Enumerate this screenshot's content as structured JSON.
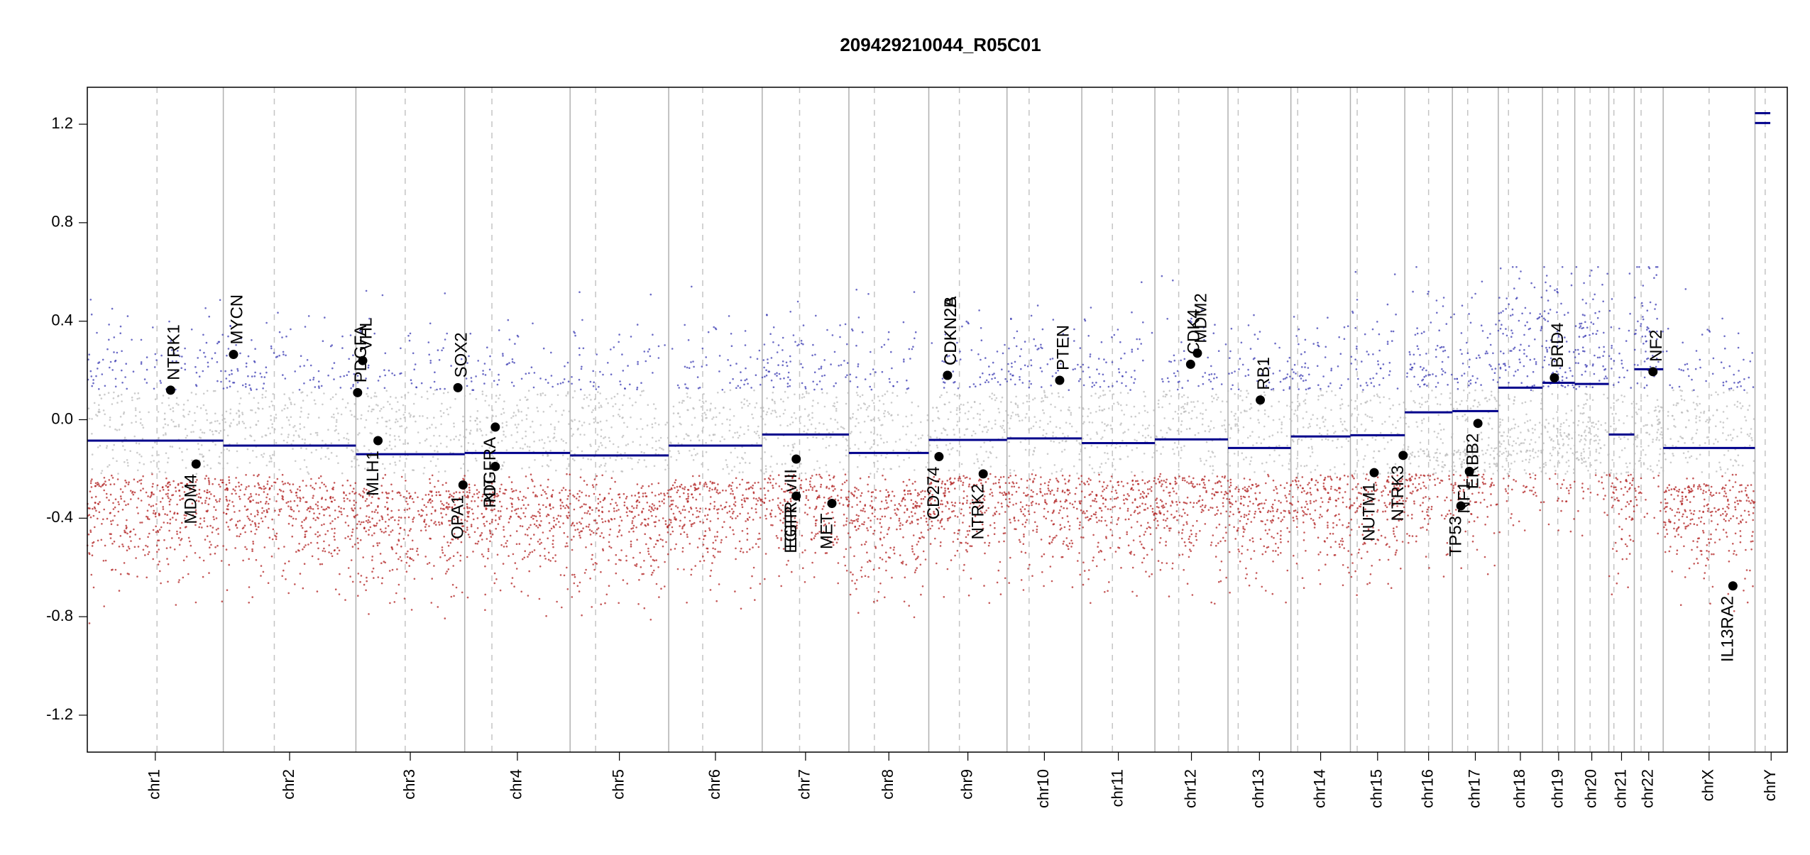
{
  "chart_data": {
    "type": "scatter",
    "title": "209429210044_R05C01",
    "ylim": [
      -1.35,
      1.35
    ],
    "yticks": [
      -1.2,
      -0.8,
      -0.4,
      0.0,
      0.4,
      0.8,
      1.2
    ],
    "ytick_labels": [
      "-1.2",
      "-0.8",
      "-0.4",
      "0.0",
      "0.4",
      "0.8",
      "1.2"
    ],
    "xlim": [
      0,
      1
    ],
    "colors": {
      "gain": "#3b3bb3",
      "loss": "#b22222",
      "neutral": "#bbbbbb",
      "segment": "#00008b",
      "gene_dot": "#000000"
    },
    "chromosomes": [
      {
        "name": "chr1",
        "start": 0.0,
        "end": 0.08,
        "centromere": 0.041
      },
      {
        "name": "chr2",
        "start": 0.08,
        "end": 0.158,
        "centromere": 0.11
      },
      {
        "name": "chr3",
        "start": 0.158,
        "end": 0.222,
        "centromere": 0.187
      },
      {
        "name": "chr4",
        "start": 0.222,
        "end": 0.284,
        "centromere": 0.238
      },
      {
        "name": "chr5",
        "start": 0.284,
        "end": 0.342,
        "centromere": 0.299
      },
      {
        "name": "chr6",
        "start": 0.342,
        "end": 0.397,
        "centromere": 0.362
      },
      {
        "name": "chr7",
        "start": 0.397,
        "end": 0.448,
        "centromere": 0.419
      },
      {
        "name": "chr8",
        "start": 0.448,
        "end": 0.495,
        "centromere": 0.463
      },
      {
        "name": "chr9",
        "start": 0.495,
        "end": 0.541,
        "centromere": 0.513
      },
      {
        "name": "chr10",
        "start": 0.541,
        "end": 0.585,
        "centromere": 0.554
      },
      {
        "name": "chr11",
        "start": 0.585,
        "end": 0.628,
        "centromere": 0.603
      },
      {
        "name": "chr12",
        "start": 0.628,
        "end": 0.671,
        "centromere": 0.642
      },
      {
        "name": "chr13",
        "start": 0.671,
        "end": 0.708,
        "centromere": 0.677
      },
      {
        "name": "chr14",
        "start": 0.708,
        "end": 0.743,
        "centromere": 0.712
      },
      {
        "name": "chr15",
        "start": 0.743,
        "end": 0.775,
        "centromere": 0.747
      },
      {
        "name": "chr16",
        "start": 0.775,
        "end": 0.803,
        "centromere": 0.789
      },
      {
        "name": "chr17",
        "start": 0.803,
        "end": 0.83,
        "centromere": 0.812
      },
      {
        "name": "chr18",
        "start": 0.83,
        "end": 0.856,
        "centromere": 0.836
      },
      {
        "name": "chr19",
        "start": 0.856,
        "end": 0.875,
        "centromere": 0.865
      },
      {
        "name": "chr20",
        "start": 0.875,
        "end": 0.895,
        "centromere": 0.884
      },
      {
        "name": "chr21",
        "start": 0.895,
        "end": 0.91,
        "centromere": 0.898
      },
      {
        "name": "chr22",
        "start": 0.91,
        "end": 0.927,
        "centromere": 0.914
      },
      {
        "name": "chrX",
        "start": 0.927,
        "end": 0.981,
        "centromere": 0.954
      },
      {
        "name": "chrY",
        "start": 0.981,
        "end": 1.0,
        "centromere": 0.987
      }
    ],
    "segments": [
      {
        "chr": "chr1",
        "x0": 0.0,
        "x1": 0.08,
        "y": -0.085
      },
      {
        "chr": "chr2",
        "x0": 0.08,
        "x1": 0.158,
        "y": -0.105
      },
      {
        "chr": "chr3",
        "x0": 0.158,
        "x1": 0.222,
        "y": -0.14
      },
      {
        "chr": "chr4",
        "x0": 0.222,
        "x1": 0.284,
        "y": -0.135
      },
      {
        "chr": "chr5",
        "x0": 0.284,
        "x1": 0.342,
        "y": -0.145
      },
      {
        "chr": "chr6",
        "x0": 0.342,
        "x1": 0.397,
        "y": -0.105
      },
      {
        "chr": "chr7",
        "x0": 0.397,
        "x1": 0.448,
        "y": -0.06
      },
      {
        "chr": "chr8",
        "x0": 0.448,
        "x1": 0.495,
        "y": -0.135
      },
      {
        "chr": "chr9",
        "x0": 0.495,
        "x1": 0.541,
        "y": -0.082
      },
      {
        "chr": "chr10",
        "x0": 0.541,
        "x1": 0.585,
        "y": -0.076
      },
      {
        "chr": "chr11",
        "x0": 0.585,
        "x1": 0.628,
        "y": -0.095
      },
      {
        "chr": "chr12",
        "x0": 0.628,
        "x1": 0.671,
        "y": -0.08
      },
      {
        "chr": "chr13",
        "x0": 0.671,
        "x1": 0.708,
        "y": -0.115
      },
      {
        "chr": "chr14",
        "x0": 0.708,
        "x1": 0.743,
        "y": -0.068
      },
      {
        "chr": "chr15",
        "x0": 0.743,
        "x1": 0.775,
        "y": -0.063
      },
      {
        "chr": "chr16",
        "x0": 0.775,
        "x1": 0.803,
        "y": 0.03
      },
      {
        "chr": "chr17",
        "x0": 0.803,
        "x1": 0.83,
        "y": 0.035
      },
      {
        "chr": "chr18",
        "x0": 0.83,
        "x1": 0.856,
        "y": 0.13
      },
      {
        "chr": "chr19",
        "x0": 0.856,
        "x1": 0.875,
        "y": 0.15
      },
      {
        "chr": "chr20",
        "x0": 0.875,
        "x1": 0.895,
        "y": 0.145
      },
      {
        "chr": "chr21",
        "x0": 0.895,
        "x1": 0.91,
        "y": -0.06
      },
      {
        "chr": "chr22",
        "x0": 0.91,
        "x1": 0.927,
        "y": 0.205
      },
      {
        "chr": "chrX",
        "x0": 0.927,
        "x1": 0.981,
        "y": -0.115
      },
      {
        "chr": "chrY",
        "x0": 0.981,
        "x1": 0.99,
        "y": 1.205
      },
      {
        "chr": "chrY",
        "x0": 0.981,
        "x1": 0.99,
        "y": 1.245
      }
    ],
    "genes": [
      {
        "name": "NTRK1",
        "x": 0.049,
        "y": 0.12,
        "label_side": "above"
      },
      {
        "name": "MDM4",
        "x": 0.064,
        "y": -0.18,
        "label_side": "below"
      },
      {
        "name": "MYCN",
        "x": 0.086,
        "y": 0.265,
        "label_side": "above"
      },
      {
        "name": "PDGFA",
        "x": 0.159,
        "y": 0.11,
        "label_side": "above"
      },
      {
        "name": "VHL",
        "x": 0.162,
        "y": 0.24,
        "label_side": "above"
      },
      {
        "name": "MLH1",
        "x": 0.171,
        "y": -0.085,
        "label_side": "below"
      },
      {
        "name": "SOX2",
        "x": 0.218,
        "y": 0.13,
        "label_side": "above"
      },
      {
        "name": "OPA1",
        "x": 0.221,
        "y": -0.265,
        "label_side": "below"
      },
      {
        "name": "PDGFRA",
        "x": 0.24,
        "y": -0.03,
        "label_side": "below"
      },
      {
        "name": "KIT",
        "x": 0.24,
        "y": -0.19,
        "label_side": "below"
      },
      {
        "name": "EGFR_vIII",
        "x": 0.417,
        "y": -0.16,
        "label_side": "below"
      },
      {
        "name": "EGFR",
        "x": 0.417,
        "y": -0.31,
        "label_side": "below"
      },
      {
        "name": "MET",
        "x": 0.438,
        "y": -0.34,
        "label_side": "below"
      },
      {
        "name": "CD274",
        "x": 0.501,
        "y": -0.15,
        "label_side": "below"
      },
      {
        "name": "CDKN2A",
        "x": 0.506,
        "y": 0.18,
        "label_side": "above"
      },
      {
        "name": "CDKN2B",
        "x": 0.506,
        "y": 0.18,
        "label_side": "above"
      },
      {
        "name": "NTRK2",
        "x": 0.527,
        "y": -0.22,
        "label_side": "below"
      },
      {
        "name": "PTEN",
        "x": 0.572,
        "y": 0.16,
        "label_side": "above"
      },
      {
        "name": "CDK4",
        "x": 0.649,
        "y": 0.225,
        "label_side": "above"
      },
      {
        "name": "MDM2",
        "x": 0.653,
        "y": 0.27,
        "label_side": "above"
      },
      {
        "name": "RB1",
        "x": 0.69,
        "y": 0.08,
        "label_side": "above"
      },
      {
        "name": "NUTM1",
        "x": 0.757,
        "y": -0.215,
        "label_side": "below"
      },
      {
        "name": "NTRK3",
        "x": 0.774,
        "y": -0.145,
        "label_side": "below"
      },
      {
        "name": "TP53",
        "x": 0.808,
        "y": -0.35,
        "label_side": "below"
      },
      {
        "name": "NF1",
        "x": 0.813,
        "y": -0.21,
        "label_side": "below"
      },
      {
        "name": "ERBB2",
        "x": 0.818,
        "y": -0.015,
        "label_side": "below"
      },
      {
        "name": "BRD4",
        "x": 0.863,
        "y": 0.17,
        "label_side": "above"
      },
      {
        "name": "NF2",
        "x": 0.921,
        "y": 0.195,
        "label_side": "above"
      },
      {
        "name": "IL13RA2",
        "x": 0.968,
        "y": -0.675,
        "label_side": "below"
      }
    ]
  }
}
